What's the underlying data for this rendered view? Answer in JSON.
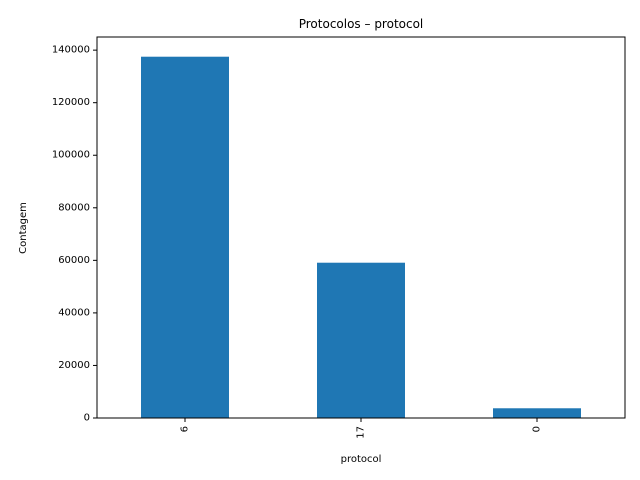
{
  "chart_data": {
    "type": "bar",
    "title": "Protocolos – protocol",
    "xlabel": "protocol",
    "ylabel": "Contagem",
    "categories": [
      "6",
      "17",
      "0"
    ],
    "values": [
      137500,
      59100,
      3700
    ],
    "ylim": [
      0,
      145000
    ],
    "yticks": [
      0,
      20000,
      40000,
      60000,
      80000,
      100000,
      120000,
      140000
    ],
    "ytick_labels": [
      "0",
      "20000",
      "40000",
      "60000",
      "80000",
      "100000",
      "120000",
      "140000"
    ],
    "bar_color": "#1f77b4",
    "grid": false,
    "legend": "none",
    "xtick_rotation": "vertical"
  }
}
